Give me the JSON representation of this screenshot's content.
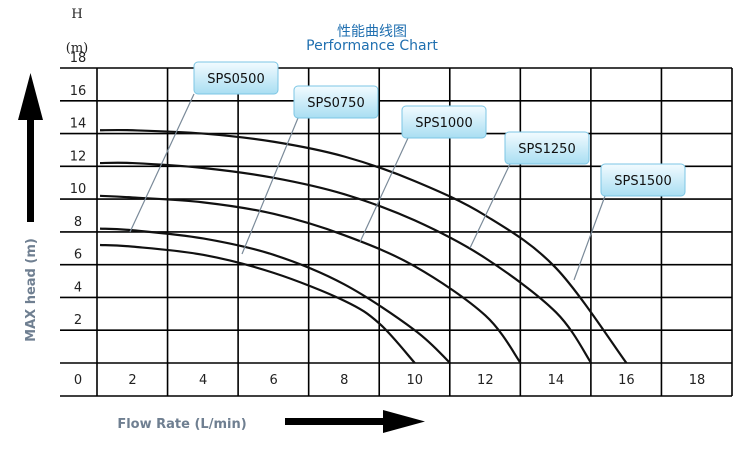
{
  "chart_data": {
    "type": "line",
    "title": "性能曲线图",
    "subtitle": "Performance Chart",
    "y_unit_top": "H",
    "y_unit_bottom": "(m)",
    "ylabel": "MAX head (m)",
    "xlabel": "Flow Rate (L/min)",
    "xlim": [
      0,
      18
    ],
    "ylim": [
      0,
      18
    ],
    "x_ticks": [
      "0",
      "2",
      "4",
      "6",
      "8",
      "10",
      "12",
      "14",
      "16",
      "18"
    ],
    "y_ticks": [
      "2",
      "4",
      "6",
      "8",
      "10",
      "12",
      "14",
      "16",
      "18"
    ],
    "grid": true,
    "colors": {
      "grid": "#000000",
      "curve": "#111111",
      "title": "#1f6fb0",
      "axis_label": "#6f7f91",
      "label_fill_top": "#f2fbff",
      "label_fill_bottom": "#a9def2"
    },
    "series": [
      {
        "name": "SPS0500",
        "shutoff_head": 7.2,
        "max_flow": 10,
        "x": [
          2,
          4,
          6,
          8,
          9,
          10
        ],
        "y": [
          7.1,
          6.6,
          5.5,
          3.8,
          2.4,
          0
        ]
      },
      {
        "name": "SPS0750",
        "shutoff_head": 8.2,
        "max_flow": 11,
        "x": [
          2,
          4,
          6,
          8,
          10,
          11
        ],
        "y": [
          8.1,
          7.6,
          6.6,
          4.8,
          2.0,
          0
        ]
      },
      {
        "name": "SPS1000",
        "shutoff_head": 10.2,
        "max_flow": 13,
        "x": [
          2,
          4,
          6,
          8,
          10,
          12,
          13
        ],
        "y": [
          10.1,
          9.8,
          9.1,
          7.8,
          5.9,
          2.9,
          0
        ]
      },
      {
        "name": "SPS1250",
        "shutoff_head": 12.2,
        "max_flow": 15,
        "x": [
          2,
          4,
          6,
          8,
          10,
          12,
          14,
          15
        ],
        "y": [
          12.2,
          11.9,
          11.3,
          10.3,
          8.7,
          6.4,
          3.1,
          0
        ]
      },
      {
        "name": "SPS1500",
        "shutoff_head": 14.2,
        "max_flow": 16,
        "x": [
          2,
          4,
          6,
          8,
          10,
          12,
          14,
          16
        ],
        "y": [
          14.2,
          14.0,
          13.5,
          12.6,
          11.1,
          9.0,
          5.8,
          0
        ]
      }
    ]
  }
}
